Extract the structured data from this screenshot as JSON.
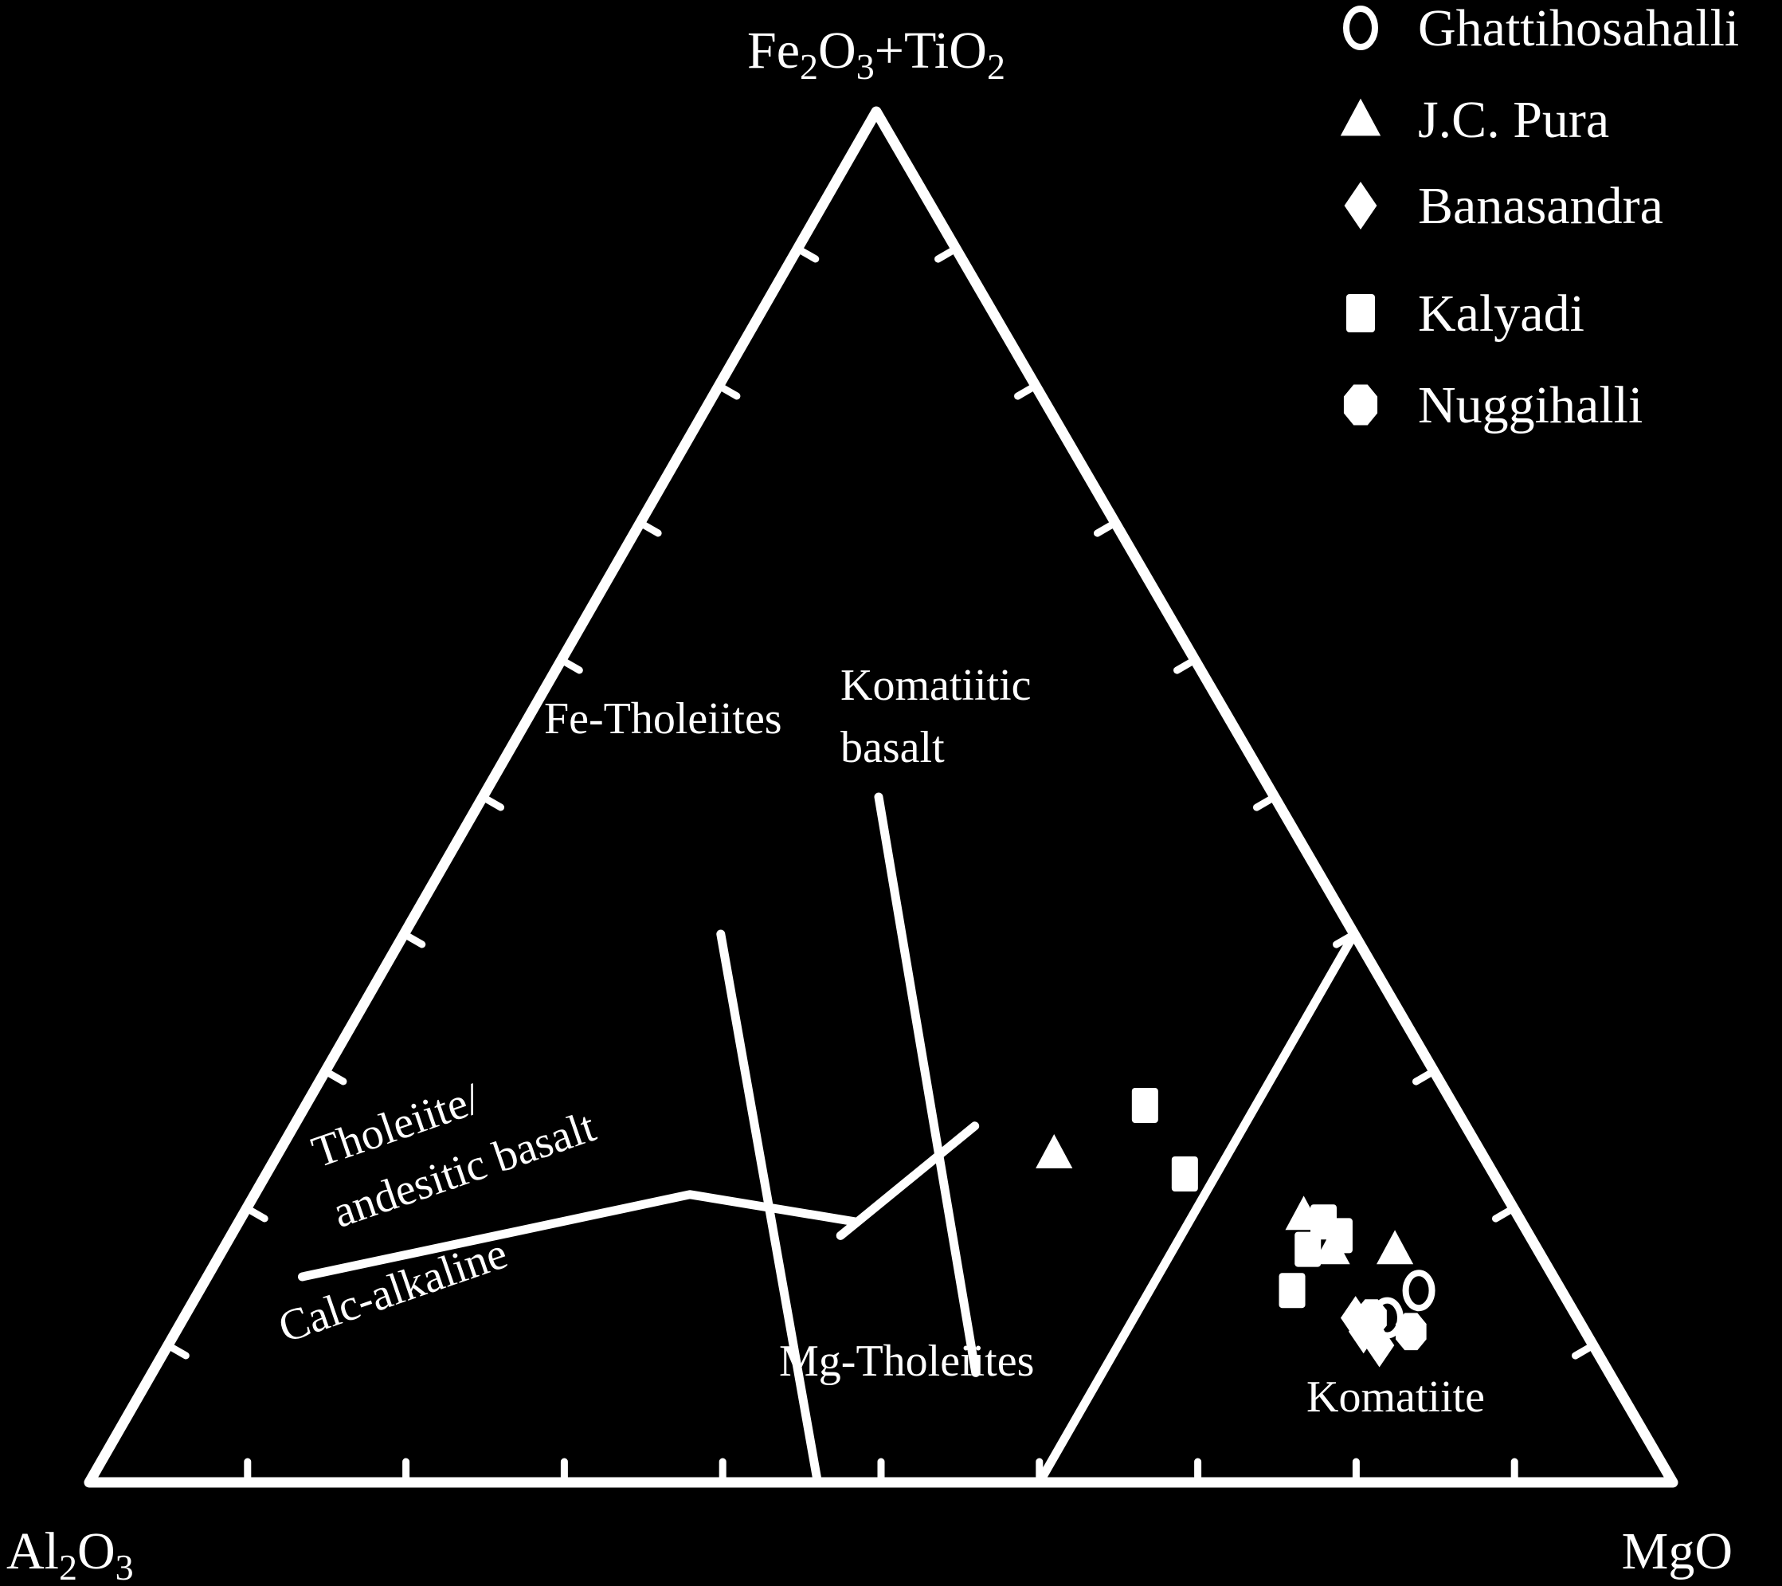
{
  "chart_data": {
    "type": "ternary",
    "axes": {
      "top": {
        "label": "Fe2O3+TiO2",
        "parts": [
          [
            "Fe",
            ""
          ],
          [
            "2",
            "sub"
          ],
          [
            "O",
            ""
          ],
          [
            "3",
            "sub"
          ],
          [
            "+TiO",
            ""
          ],
          [
            "2",
            "sub"
          ]
        ]
      },
      "left": {
        "label": "Al2O3",
        "parts": [
          [
            "Al",
            ""
          ],
          [
            "2",
            "sub"
          ],
          [
            "O",
            ""
          ],
          [
            "3",
            "sub"
          ]
        ]
      },
      "right": {
        "label": "MgO",
        "parts": [
          [
            "MgO",
            ""
          ]
        ]
      }
    },
    "tick_interval": 0.1,
    "colors": {
      "background": "#000000",
      "foreground": "#ffffff"
    },
    "legend": {
      "placement": "top-right",
      "entries": [
        {
          "label": "Ghattihosahalli",
          "marker": "open-circle"
        },
        {
          "label": "J.C. Pura",
          "marker": "triangle"
        },
        {
          "label": "Banasandra",
          "marker": "diamond"
        },
        {
          "label": "Kalyadi",
          "marker": "square"
        },
        {
          "label": "Nuggihalli",
          "marker": "octagon"
        }
      ]
    },
    "boundaries": [
      {
        "name": "calc-alkaline-tholeiite",
        "points": [
          {
            "fe": 0.15,
            "mg": 0.06
          },
          {
            "fe": 0.21,
            "mg": 0.275
          },
          {
            "fe": 0.19,
            "mg": 0.39
          }
        ]
      },
      {
        "name": "komatiite-field",
        "points": [
          {
            "fe": 0.4,
            "mg": 0.6
          },
          {
            "fe": 0.0,
            "mg": 0.6
          }
        ]
      },
      {
        "name": "tholeiite-fe-mg",
        "points": [
          {
            "fe": 0.4,
            "mg": 0.2
          },
          {
            "fe": 0.0,
            "mg": 0.46
          }
        ]
      },
      {
        "name": "fe-mg-tholeiite-split",
        "points": [
          {
            "fe": 0.26,
            "mg": 0.43
          },
          {
            "fe": 0.18,
            "mg": 0.385
          }
        ]
      },
      {
        "name": "komatiitic-basalt-boundary",
        "points": [
          {
            "fe": 0.5,
            "mg": 0.25
          },
          {
            "fe": 0.08,
            "mg": 0.52
          }
        ]
      }
    ],
    "regions": [
      {
        "label": "Fe-Tholeiites",
        "lines": [
          "Fe-Tholeiites"
        ]
      },
      {
        "label": "Komatiitic basalt",
        "lines": [
          "Komatiitic",
          "basalt"
        ]
      },
      {
        "label": "Tholeiite/ andesitic basalt",
        "lines": [
          "Tholeiite/",
          "andesitic basalt"
        ]
      },
      {
        "label": "Calc-alkaline",
        "lines": [
          "Calc-alkaline"
        ]
      },
      {
        "label": "Mg-Tholeiites",
        "lines": [
          "Mg-Tholeiites"
        ]
      },
      {
        "label": "Komatiite",
        "lines": [
          "Komatiite"
        ]
      }
    ],
    "series": [
      {
        "name": "Ghattihosahalli",
        "marker": "open-circle",
        "points": [
          {
            "fe": 0.14,
            "mg": 0.77
          },
          {
            "fe": 0.12,
            "mg": 0.76
          }
        ]
      },
      {
        "name": "J.C. Pura",
        "marker": "triangle",
        "points": [
          {
            "fe": 0.24,
            "mg": 0.49
          },
          {
            "fe": 0.195,
            "mg": 0.67
          },
          {
            "fe": 0.17,
            "mg": 0.7
          },
          {
            "fe": 0.17,
            "mg": 0.74
          }
        ]
      },
      {
        "name": "Banasandra",
        "marker": "diamond",
        "points": [
          {
            "fe": 0.11,
            "mg": 0.75
          },
          {
            "fe": 0.1,
            "mg": 0.765
          },
          {
            "fe": 0.12,
            "mg": 0.74
          }
        ]
      },
      {
        "name": "Kalyadi",
        "marker": "square",
        "points": [
          {
            "fe": 0.275,
            "mg": 0.53
          },
          {
            "fe": 0.225,
            "mg": 0.58
          },
          {
            "fe": 0.19,
            "mg": 0.685
          },
          {
            "fe": 0.17,
            "mg": 0.685
          },
          {
            "fe": 0.14,
            "mg": 0.69
          },
          {
            "fe": 0.18,
            "mg": 0.7
          }
        ]
      },
      {
        "name": "Nuggihalli",
        "marker": "octagon",
        "points": [
          {
            "fe": 0.12,
            "mg": 0.75
          },
          {
            "fe": 0.11,
            "mg": 0.78
          }
        ]
      }
    ]
  }
}
